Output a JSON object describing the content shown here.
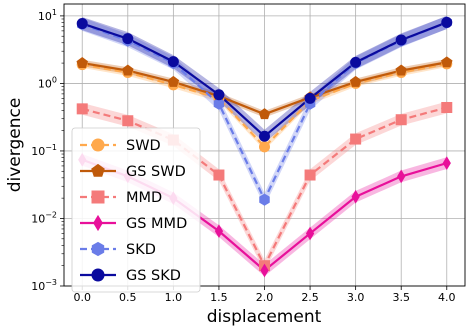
{
  "chart_data": {
    "type": "line",
    "xlabel": "displacement",
    "ylabel": "divergence",
    "yscale": "log",
    "xlim": [
      -0.2,
      4.2
    ],
    "ylim": [
      0.001,
      15
    ],
    "x": [
      0.0,
      0.5,
      1.0,
      1.5,
      2.0,
      2.5,
      3.0,
      3.5,
      4.0
    ],
    "xticks": [
      "0.0",
      "0.5",
      "1.0",
      "1.5",
      "2.0",
      "2.5",
      "3.0",
      "3.5",
      "4.0"
    ],
    "yticks": [
      {
        "value": 10,
        "mantissa": "10",
        "exponent": "1"
      },
      {
        "value": 1,
        "mantissa": "10",
        "exponent": "0"
      },
      {
        "value": 0.1,
        "mantissa": "10",
        "exponent": "−1"
      },
      {
        "value": 0.01,
        "mantissa": "10",
        "exponent": "−2"
      },
      {
        "value": 0.001,
        "mantissa": "10",
        "exponent": "−3"
      }
    ],
    "grid": true,
    "legend_position": "lower-left",
    "series": [
      {
        "name": "SWD",
        "color": "#ffa94d",
        "dashed": true,
        "marker": "circle",
        "values": [
          1.9,
          1.45,
          0.95,
          0.6,
          0.115,
          0.55,
          1.0,
          1.45,
          1.95
        ],
        "band": 0.12
      },
      {
        "name": "GS SWD",
        "color": "#c05a0a",
        "dashed": false,
        "marker": "pentagon",
        "values": [
          2.0,
          1.55,
          1.05,
          0.65,
          0.35,
          0.62,
          1.05,
          1.55,
          2.05
        ],
        "band": 0.12
      },
      {
        "name": "MMD",
        "color": "#f47a7a",
        "dashed": true,
        "marker": "square",
        "values": [
          0.42,
          0.28,
          0.145,
          0.044,
          0.002,
          0.044,
          0.15,
          0.29,
          0.44
        ],
        "band": 0.22
      },
      {
        "name": "GS MMD",
        "color": "#e8109a",
        "dashed": false,
        "marker": "diamond",
        "values": [
          0.074,
          0.042,
          0.02,
          0.0065,
          0.0017,
          0.006,
          0.021,
          0.042,
          0.066
        ],
        "band": 0.22
      },
      {
        "name": "SKD",
        "color": "#6a7ce8",
        "dashed": true,
        "marker": "hexagon",
        "values": [
          7.5,
          4.3,
          2.0,
          0.5,
          0.019,
          0.5,
          2.0,
          4.3,
          8.0
        ],
        "band": 0.25
      },
      {
        "name": "GS SKD",
        "color": "#0a0a9e",
        "dashed": false,
        "marker": "circle",
        "values": [
          7.7,
          4.6,
          2.1,
          0.68,
          0.165,
          0.6,
          2.05,
          4.4,
          8.0
        ],
        "band": 0.25
      }
    ]
  }
}
